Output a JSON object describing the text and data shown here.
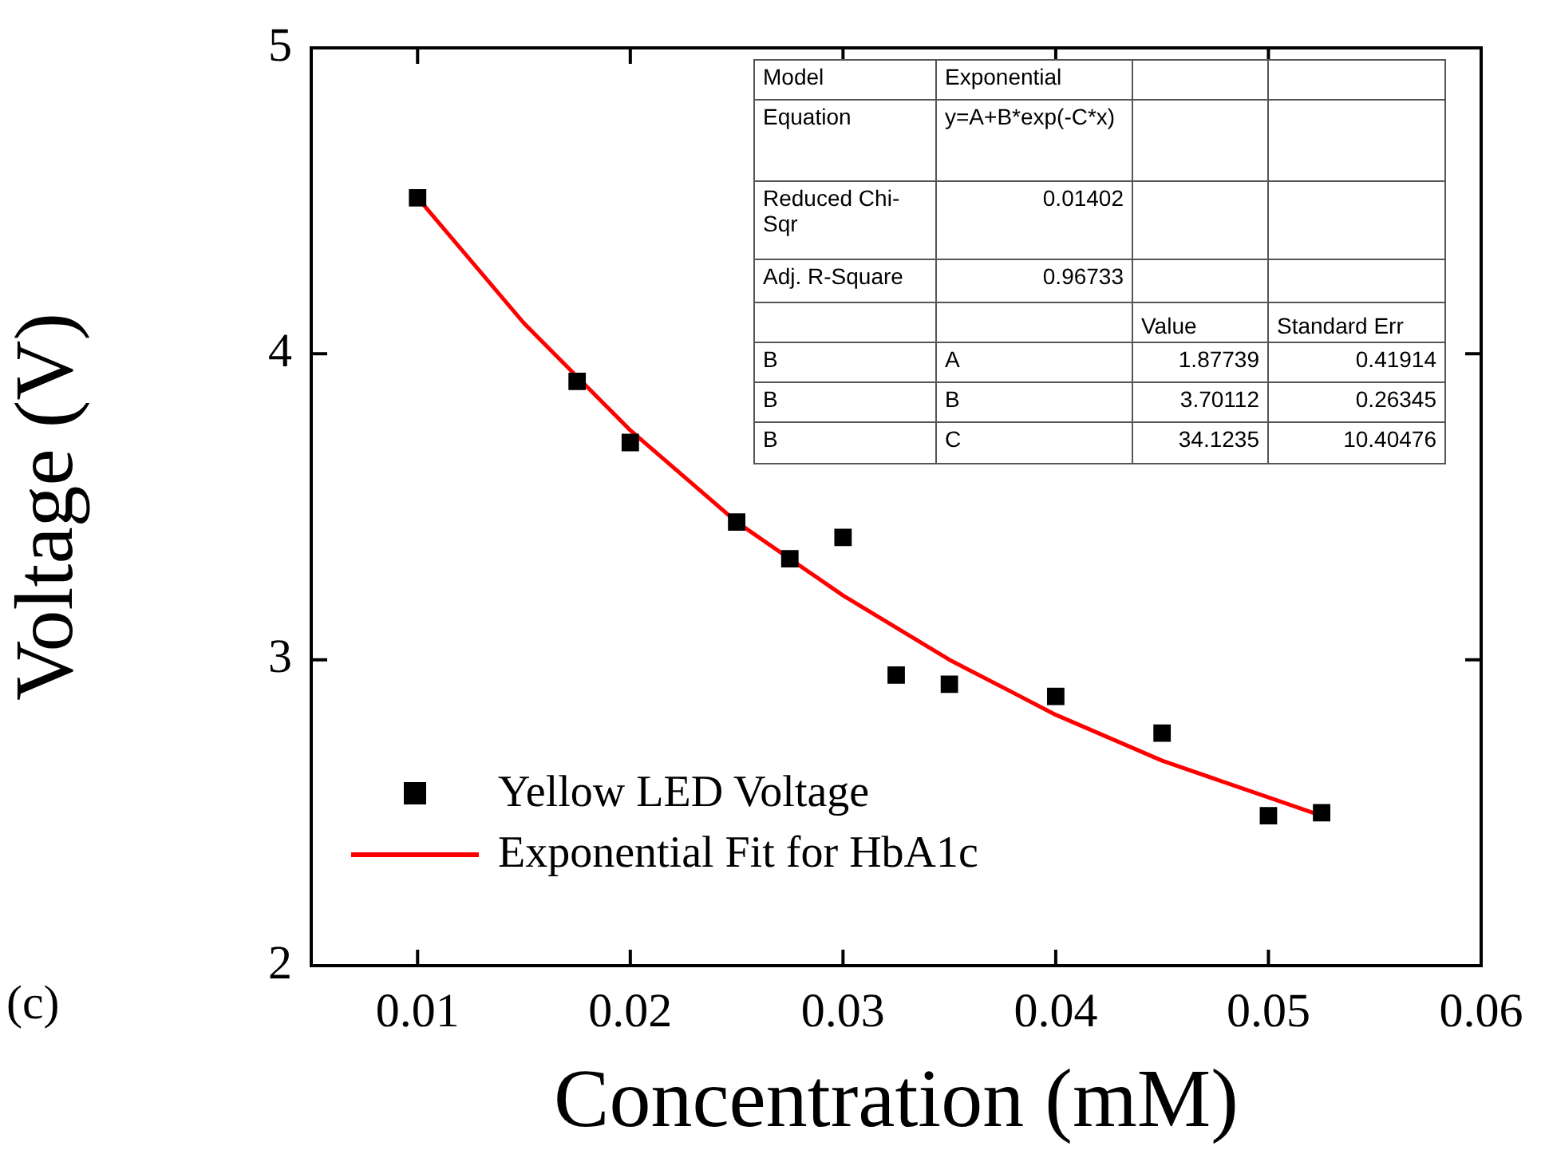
{
  "chart_data": {
    "type": "scatter",
    "xlabel": "Concentration (mM)",
    "ylabel": "Voltage (V)",
    "xlim": [
      0.005,
      0.06
    ],
    "xticks": [
      0.01,
      0.02,
      0.03,
      0.04,
      0.05,
      0.06
    ],
    "ylim": [
      2,
      5
    ],
    "yticks": [
      2,
      3,
      4,
      5
    ],
    "grid": false,
    "legend": "bottom left",
    "marker": "square",
    "series": [
      {
        "name": "Yellow LED Voltage",
        "type": "scatter",
        "color": "#000000",
        "x": [
          0.01,
          0.0175,
          0.02,
          0.025,
          0.0275,
          0.03,
          0.0325,
          0.035,
          0.04,
          0.045,
          0.05,
          0.0525
        ],
        "values": [
          4.51,
          3.91,
          3.71,
          3.45,
          3.33,
          3.4,
          2.95,
          2.92,
          2.88,
          2.76,
          2.49,
          2.5
        ]
      },
      {
        "name": "Exponential Fit for HbA1c",
        "type": "line",
        "color": "#ff0000",
        "marker": "none",
        "x": [
          0.01,
          0.015,
          0.02,
          0.025,
          0.03,
          0.035,
          0.04,
          0.045,
          0.05,
          0.0525
        ],
        "values": [
          4.51,
          4.1,
          3.75,
          3.45,
          3.21,
          3,
          2.82,
          2.67,
          2.55,
          2.49
        ]
      }
    ],
    "annotations": [
      "(c)",
      "Model",
      "Exponential",
      null,
      null,
      "Equation",
      "y=A+B*exp(-C*x)",
      null,
      null,
      "Reduced Chi-Sqr",
      "0.01402",
      null,
      null,
      "Adj. R-Square",
      "0.96733",
      null,
      null,
      null,
      null,
      "Value",
      "Standard Err",
      "B",
      "A",
      "1.87739",
      "0.41914",
      "B",
      "B",
      "3.70112",
      "0.26345",
      "B",
      "C",
      "34.1235",
      "10.40476"
    ]
  }
}
